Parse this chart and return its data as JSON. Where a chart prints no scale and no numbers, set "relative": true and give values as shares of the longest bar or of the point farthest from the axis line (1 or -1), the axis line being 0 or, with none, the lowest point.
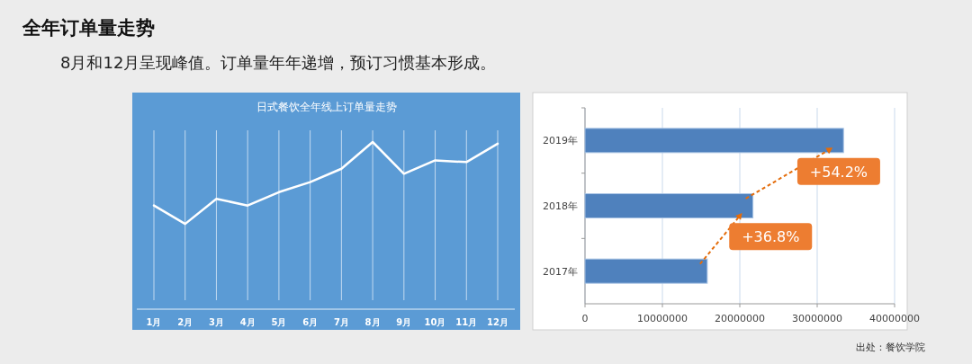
{
  "chart_data": [
    {
      "type": "other",
      "title": "全年订单量走势",
      "subtitle": "8月和12月呈现峰值。订单量年年递增，预订习惯基本形成。"
    },
    {
      "type": "line",
      "title": "日式餐饮全年线上订单量走势",
      "relative": true,
      "grid": "x",
      "marker": "none",
      "line_style": "solid",
      "categories": [
        "1月",
        "2月",
        "3月",
        "4月",
        "5月",
        "6月",
        "7月",
        "8月",
        "9月",
        "10月",
        "11月",
        "12月"
      ],
      "series": [
        {
          "color": "#ffffff",
          "values": [
            0.62,
            0.51,
            0.66,
            0.62,
            0.7,
            0.76,
            0.84,
            1,
            0.81,
            0.89,
            0.88,
            0.99
          ]
        }
      ]
    },
    {
      "type": "bar",
      "orientation": "horizontal",
      "grid": "x",
      "categories": [
        "2019年",
        "2018年",
        "2017年"
      ],
      "series": [
        {
          "color": "#4f81bd",
          "values": [
            33400000,
            21700000,
            15800000
          ]
        }
      ],
      "xlim": [
        0,
        40000000
      ],
      "xticks": [
        0,
        10000000,
        20000000,
        30000000,
        40000000
      ],
      "annotations": [
        "+54.2%",
        "+36.8%",
        "出处：餐饮学院"
      ]
    }
  ]
}
